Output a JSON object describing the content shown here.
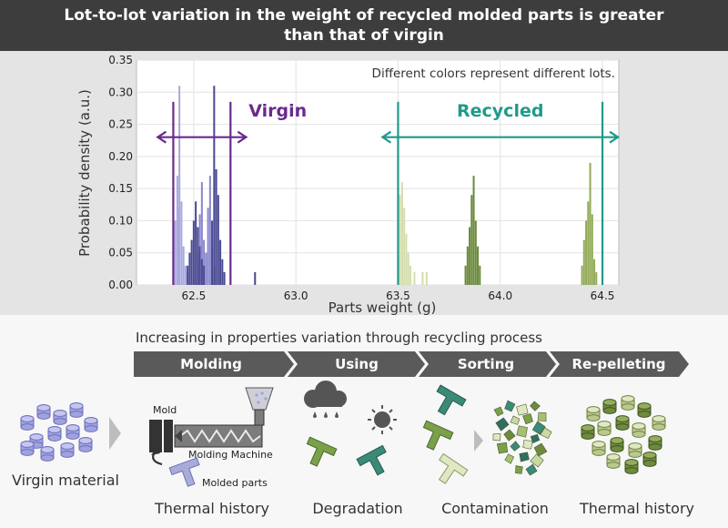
{
  "title": {
    "line1": "Lot-to-lot variation in the weight of recycled molded parts is greater",
    "line2": "than that of virgin"
  },
  "chart_data": {
    "type": "bar",
    "xlabel": "Parts weight (g)",
    "ylabel": "Probability density (a.u.)",
    "xlim": [
      62.22,
      64.58
    ],
    "ylim": [
      0,
      0.35
    ],
    "xticks": [
      "62.5",
      "63.0",
      "63.5",
      "64.0",
      "64.5"
    ],
    "yticks": [
      "0.00",
      "0.05",
      "0.10",
      "0.15",
      "0.20",
      "0.25",
      "0.30",
      "0.35"
    ],
    "grid": true,
    "note": "Different colors represent different lots.",
    "groups": [
      {
        "name": "Virgin",
        "range": [
          62.4,
          62.68
        ],
        "color": "#6a2a8c"
      },
      {
        "name": "Recycled",
        "range": [
          63.5,
          64.5
        ],
        "color": "#1f9a8a"
      }
    ],
    "series": [
      {
        "color": "#a9a8df",
        "points": [
          [
            62.4,
            0.04
          ],
          [
            62.41,
            0.1
          ],
          [
            62.42,
            0.17
          ],
          [
            62.425,
            0.12
          ],
          [
            62.43,
            0.31
          ],
          [
            62.44,
            0.13
          ],
          [
            62.45,
            0.06
          ],
          [
            62.46,
            0.03
          ],
          [
            62.47,
            0.02
          ]
        ]
      },
      {
        "color": "#8a86cf",
        "points": [
          [
            62.52,
            0.05
          ],
          [
            62.53,
            0.11
          ],
          [
            62.54,
            0.16
          ],
          [
            62.55,
            0.07
          ],
          [
            62.56,
            0.05
          ],
          [
            62.57,
            0.12
          ],
          [
            62.58,
            0.17
          ],
          [
            62.59,
            0.06
          ],
          [
            62.6,
            0.03
          ]
        ]
      },
      {
        "color": "#4a4a92",
        "points": [
          [
            62.47,
            0.03
          ],
          [
            62.48,
            0.05
          ],
          [
            62.49,
            0.07
          ],
          [
            62.5,
            0.1
          ],
          [
            62.51,
            0.13
          ],
          [
            62.52,
            0.09
          ],
          [
            62.53,
            0.06
          ],
          [
            62.54,
            0.04
          ],
          [
            62.55,
            0.03
          ],
          [
            62.59,
            0.1
          ],
          [
            62.6,
            0.31
          ],
          [
            62.61,
            0.18
          ],
          [
            62.62,
            0.14
          ],
          [
            62.63,
            0.07
          ],
          [
            62.64,
            0.04
          ],
          [
            62.65,
            0.02
          ],
          [
            62.8,
            0.02
          ]
        ]
      },
      {
        "color": "#d3dfae",
        "points": [
          [
            63.5,
            0.06
          ],
          [
            63.51,
            0.14
          ],
          [
            63.52,
            0.16
          ],
          [
            63.53,
            0.12
          ],
          [
            63.54,
            0.08
          ],
          [
            63.55,
            0.05
          ],
          [
            63.56,
            0.03
          ],
          [
            63.58,
            0.02
          ],
          [
            63.62,
            0.02
          ],
          [
            63.64,
            0.02
          ]
        ]
      },
      {
        "color": "#6b8a3c",
        "points": [
          [
            63.83,
            0.03
          ],
          [
            63.84,
            0.06
          ],
          [
            63.85,
            0.09
          ],
          [
            63.86,
            0.14
          ],
          [
            63.87,
            0.17
          ],
          [
            63.88,
            0.1
          ],
          [
            63.89,
            0.06
          ],
          [
            63.9,
            0.03
          ]
        ]
      },
      {
        "color": "#93ab58",
        "points": [
          [
            64.4,
            0.03
          ],
          [
            64.41,
            0.07
          ],
          [
            64.42,
            0.1
          ],
          [
            64.43,
            0.13
          ],
          [
            64.44,
            0.19
          ],
          [
            64.45,
            0.11
          ],
          [
            64.46,
            0.04
          ],
          [
            64.47,
            0.02
          ]
        ]
      }
    ]
  },
  "process": {
    "subtitle": "Increasing in properties variation through recycling process",
    "stages": [
      "Molding",
      "Using",
      "Sorting",
      "Re-pelleting"
    ],
    "virgin_caption": "Virgin material",
    "captions": [
      "Thermal history",
      "Degradation",
      "Contamination",
      "Thermal history"
    ],
    "mold_label": "Mold",
    "machine_label": "Molding Machine",
    "parts_label": "Molded parts"
  },
  "colors": {
    "banner": "#3d3d3d",
    "stage_bar": "#5a5a5a",
    "virgin_pellet": "#9fa2e0",
    "green_part": "#7aa04a",
    "teal_part": "#3b8a78"
  }
}
